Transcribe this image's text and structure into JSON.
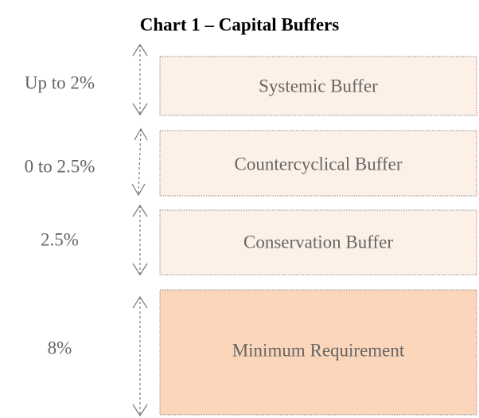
{
  "header": {
    "title": "Chart 1 – Capital Buffers"
  },
  "layers": [
    {
      "range": "Up to 2%",
      "label": "Systemic Buffer"
    },
    {
      "range": "0 to 2.5%",
      "label": "Countercyclical Buffer"
    },
    {
      "range": "2.5%",
      "label": "Conservation Buffer"
    },
    {
      "range": "8%",
      "label": "Minimum Requirement"
    }
  ]
}
